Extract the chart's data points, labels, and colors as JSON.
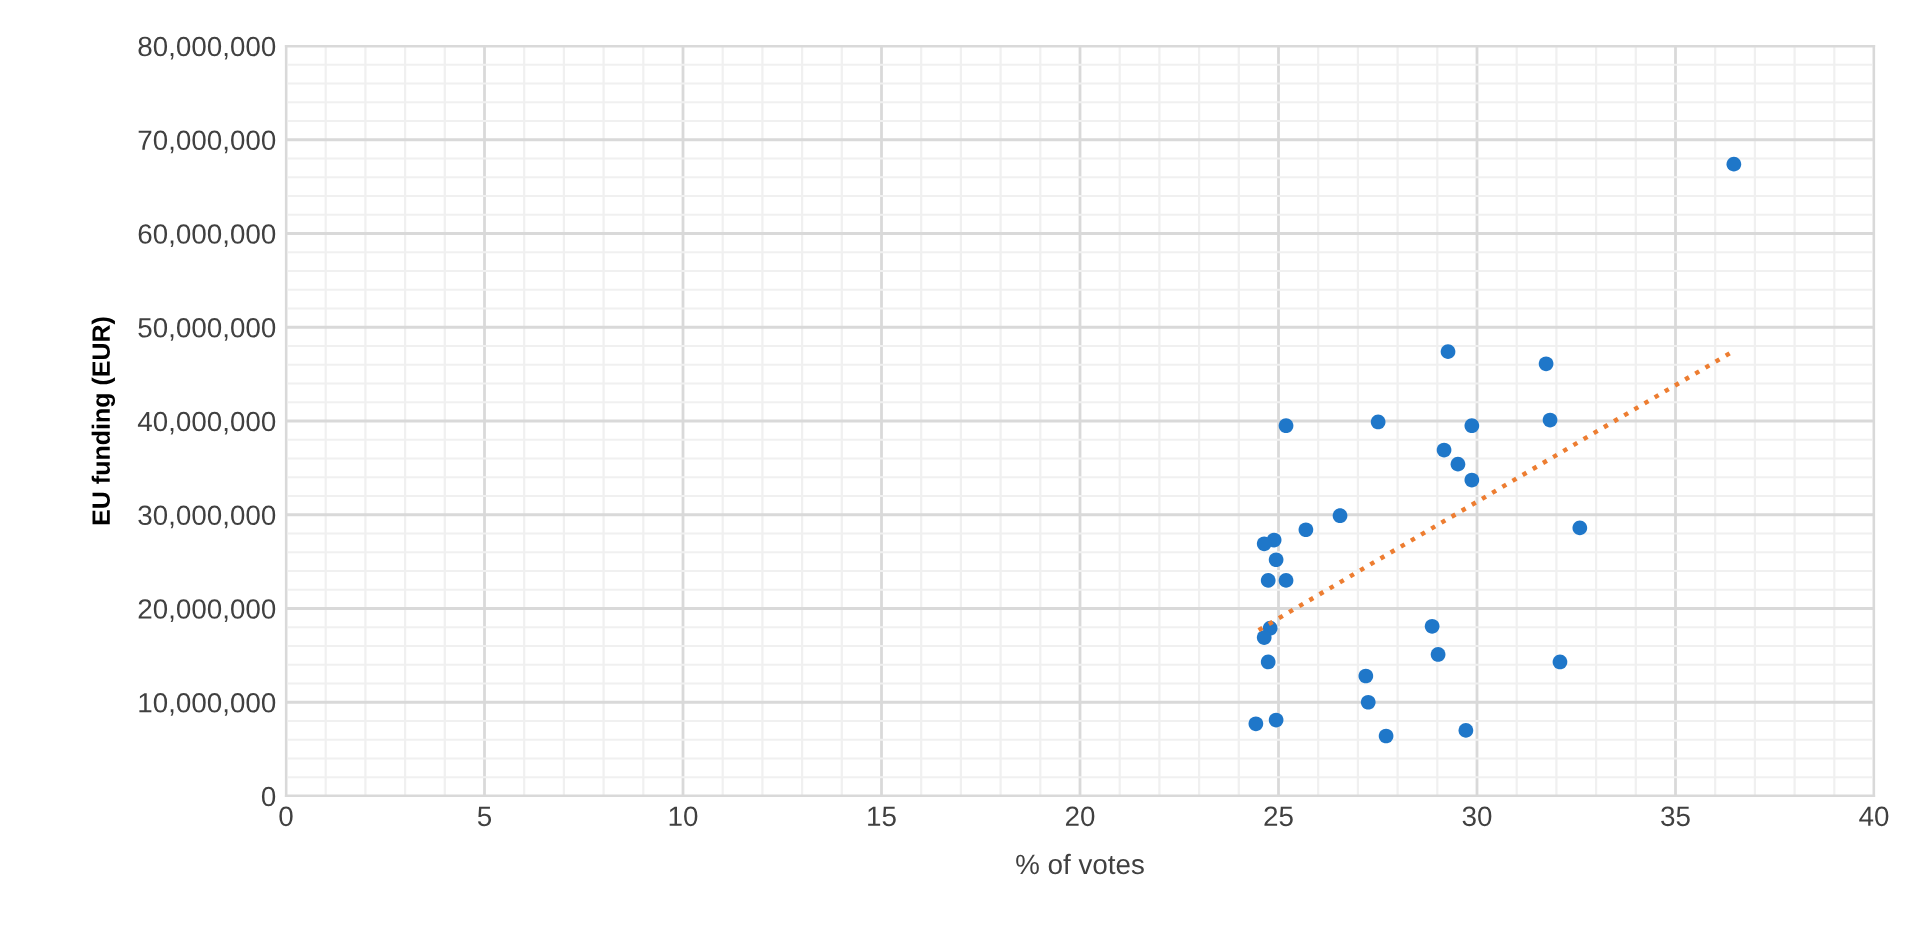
{
  "chart_data": {
    "type": "scatter",
    "xlabel": "% of votes",
    "ylabel": "EU funding (EUR)",
    "series": [
      {
        "color": "#1f77c9",
        "marker": "circle",
        "x": [
          36.47,
          29.27,
          31.74,
          25.19,
          27.51,
          29.87,
          31.84,
          29.17,
          29.52,
          29.87,
          26.55,
          25.69,
          32.59,
          24.89,
          24.64,
          24.94,
          24.74,
          25.19,
          28.87,
          24.79,
          24.64,
          29.02,
          32.09,
          24.74,
          27.2,
          27.26,
          24.43,
          24.94,
          27.71,
          29.72
        ],
        "values": [
          67400000,
          47400000,
          46100000,
          39500000,
          39900000,
          39500000,
          40100000,
          36900000,
          35400000,
          33700000,
          29900000,
          28400000,
          28600000,
          27300000,
          26900000,
          25200000,
          23000000,
          23000000,
          18100000,
          17900000,
          16900000,
          15100000,
          14300000,
          14300000,
          12800000,
          10000000,
          7700000,
          8100000,
          6400000,
          7000000
        ]
      },
      {
        "type": "line",
        "color": "#ed7d31",
        "line_style": "dotted",
        "x": [
          24.5,
          36.52
        ],
        "values": [
          17700000,
          47600000
        ]
      }
    ],
    "xlim": [
      0,
      40
    ],
    "xticks": [
      0,
      5,
      10,
      15,
      20,
      25,
      30,
      35,
      40
    ],
    "ylim": [
      0,
      80000000
    ],
    "yticks": [
      {
        "value": 0,
        "label": "0"
      },
      {
        "value": 10000000,
        "label": "10,000,000"
      },
      {
        "value": 20000000,
        "label": "20,000,000"
      },
      {
        "value": 30000000,
        "label": "30,000,000"
      },
      {
        "value": 40000000,
        "label": "40,000,000"
      },
      {
        "value": 50000000,
        "label": "50,000,000"
      },
      {
        "value": 60000000,
        "label": "60,000,000"
      },
      {
        "value": 70000000,
        "label": "70,000,000"
      },
      {
        "value": 80000000,
        "label": "80,000,000"
      }
    ],
    "grid": true
  }
}
